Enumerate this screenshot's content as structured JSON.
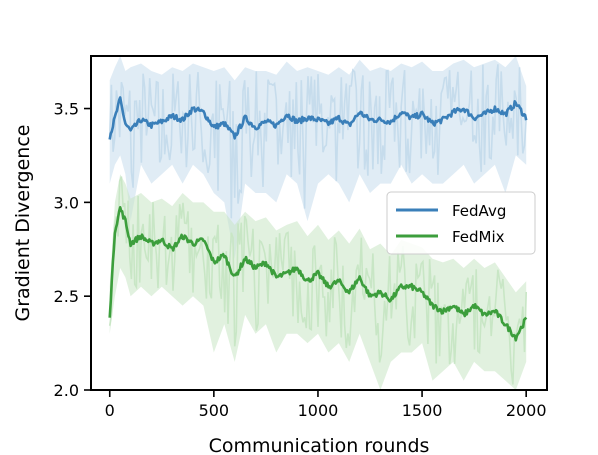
{
  "chart_data": {
    "type": "line",
    "title": "",
    "xlabel": "Communication rounds",
    "ylabel": "Gradient Divergence",
    "xlim": [
      -90,
      2100
    ],
    "ylim": [
      2.0,
      3.78
    ],
    "xticks": [
      0,
      500,
      1000,
      1500,
      2000
    ],
    "xtick_labels": [
      "0",
      "500",
      "1000",
      "1500",
      "2000"
    ],
    "yticks": [
      2.0,
      2.5,
      3.0,
      3.5
    ],
    "ytick_labels": [
      "2.0",
      "2.5",
      "3.0",
      "3.5"
    ],
    "grid": false,
    "legend": {
      "position": "center-right"
    },
    "series": [
      {
        "name": "FedAvg",
        "color": "#3a7fb9",
        "band_color": "#c6dcec",
        "x": [
          0,
          25,
          50,
          75,
          100,
          150,
          200,
          250,
          300,
          350,
          400,
          450,
          500,
          550,
          600,
          650,
          700,
          750,
          800,
          850,
          900,
          950,
          1000,
          1050,
          1100,
          1150,
          1200,
          1250,
          1300,
          1350,
          1400,
          1450,
          1500,
          1550,
          1600,
          1650,
          1700,
          1750,
          1800,
          1850,
          1900,
          1950,
          2000
        ],
        "smoothed": [
          3.35,
          3.45,
          3.55,
          3.42,
          3.38,
          3.44,
          3.41,
          3.43,
          3.46,
          3.44,
          3.5,
          3.48,
          3.4,
          3.42,
          3.35,
          3.45,
          3.4,
          3.43,
          3.41,
          3.47,
          3.43,
          3.45,
          3.44,
          3.42,
          3.45,
          3.41,
          3.48,
          3.44,
          3.44,
          3.43,
          3.48,
          3.45,
          3.47,
          3.42,
          3.44,
          3.48,
          3.5,
          3.45,
          3.47,
          3.5,
          3.47,
          3.53,
          3.45
        ],
        "raw_min": [
          3.1,
          3.2,
          3.25,
          3.15,
          2.9,
          3.2,
          3.1,
          3.15,
          3.2,
          3.1,
          3.2,
          3.15,
          3.05,
          3.0,
          2.7,
          3.1,
          3.05,
          3.05,
          3.0,
          3.15,
          3.1,
          2.9,
          3.1,
          3.15,
          3.1,
          3.0,
          3.15,
          3.05,
          3.1,
          3.1,
          3.2,
          3.1,
          3.15,
          3.1,
          3.1,
          3.15,
          3.2,
          3.1,
          3.15,
          3.2,
          3.05,
          3.25,
          3.2
        ],
        "raw_max": [
          3.65,
          3.72,
          3.78,
          3.7,
          3.72,
          3.74,
          3.7,
          3.68,
          3.72,
          3.7,
          3.74,
          3.72,
          3.7,
          3.72,
          3.65,
          3.72,
          3.7,
          3.7,
          3.68,
          3.75,
          3.7,
          3.72,
          3.7,
          3.68,
          3.72,
          3.68,
          3.76,
          3.7,
          3.72,
          3.7,
          3.74,
          3.72,
          3.75,
          3.7,
          3.7,
          3.74,
          3.76,
          3.72,
          3.74,
          3.76,
          3.72,
          3.78,
          3.62
        ]
      },
      {
        "name": "FedMix",
        "color": "#3c9e3c",
        "band_color": "#c8e6c5",
        "x": [
          0,
          25,
          50,
          75,
          100,
          150,
          200,
          250,
          300,
          350,
          400,
          450,
          500,
          550,
          600,
          650,
          700,
          750,
          800,
          850,
          900,
          950,
          1000,
          1050,
          1100,
          1150,
          1200,
          1250,
          1300,
          1350,
          1400,
          1450,
          1500,
          1550,
          1600,
          1650,
          1700,
          1750,
          1800,
          1850,
          1900,
          1950,
          2000
        ],
        "smoothed": [
          2.4,
          2.85,
          2.97,
          2.9,
          2.78,
          2.82,
          2.78,
          2.8,
          2.75,
          2.82,
          2.78,
          2.8,
          2.68,
          2.72,
          2.6,
          2.7,
          2.65,
          2.68,
          2.6,
          2.62,
          2.65,
          2.58,
          2.62,
          2.55,
          2.58,
          2.52,
          2.6,
          2.5,
          2.52,
          2.48,
          2.55,
          2.55,
          2.52,
          2.45,
          2.42,
          2.45,
          2.4,
          2.45,
          2.4,
          2.42,
          2.35,
          2.28,
          2.38
        ],
        "raw_min": [
          2.3,
          2.5,
          2.65,
          2.6,
          2.5,
          2.55,
          2.5,
          2.55,
          2.5,
          2.45,
          2.5,
          2.45,
          2.2,
          2.35,
          2.15,
          2.4,
          2.3,
          2.35,
          2.2,
          2.3,
          2.3,
          2.25,
          2.3,
          2.2,
          2.25,
          2.15,
          2.3,
          2.15,
          2.0,
          2.15,
          2.2,
          2.2,
          2.25,
          2.05,
          2.1,
          2.15,
          2.05,
          2.15,
          2.1,
          2.1,
          2.05,
          2.0,
          2.15
        ],
        "raw_max": [
          2.55,
          3.0,
          3.15,
          3.1,
          3.02,
          3.05,
          3.0,
          3.02,
          2.98,
          3.05,
          3.0,
          3.0,
          2.95,
          2.95,
          2.88,
          2.95,
          2.9,
          2.92,
          2.85,
          2.88,
          2.9,
          2.82,
          2.88,
          2.8,
          2.85,
          2.78,
          2.86,
          2.75,
          2.78,
          2.72,
          2.8,
          2.78,
          2.76,
          2.7,
          2.68,
          2.7,
          2.65,
          2.7,
          2.65,
          2.68,
          2.6,
          2.52,
          2.58
        ]
      }
    ]
  }
}
